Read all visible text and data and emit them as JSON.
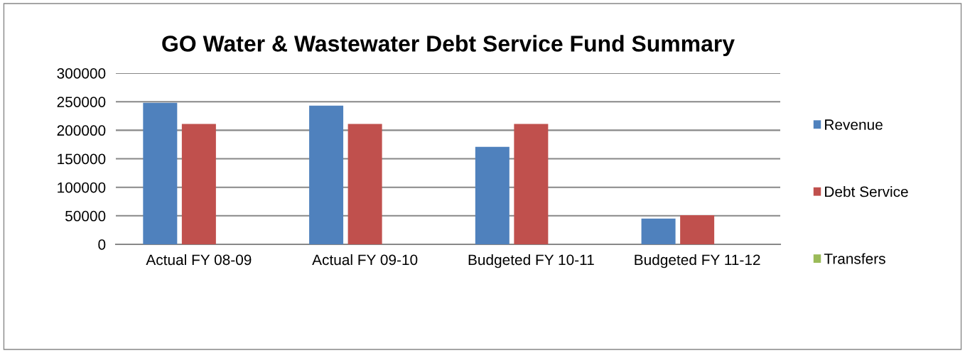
{
  "chart_data": {
    "type": "bar",
    "title": "GO Water & Wastewater Debt Service Fund Summary",
    "categories": [
      "Actual FY 08-09",
      "Actual FY 09-10",
      "Budgeted FY 10-11",
      "Budgeted FY 11-12"
    ],
    "series": [
      {
        "name": "Revenue",
        "color": "#4f81bd",
        "values": [
          248000,
          243000,
          171000,
          45000
        ]
      },
      {
        "name": "Debt Service",
        "color": "#c0504d",
        "values": [
          211000,
          211000,
          211000,
          51000
        ]
      },
      {
        "name": "Transfers",
        "color": "#9bbb59",
        "values": [
          0,
          0,
          0,
          0
        ]
      }
    ],
    "ylim": [
      0,
      300000
    ],
    "yticks": [
      0,
      50000,
      100000,
      150000,
      200000,
      250000,
      300000
    ],
    "grid": "y",
    "legend": "right"
  }
}
